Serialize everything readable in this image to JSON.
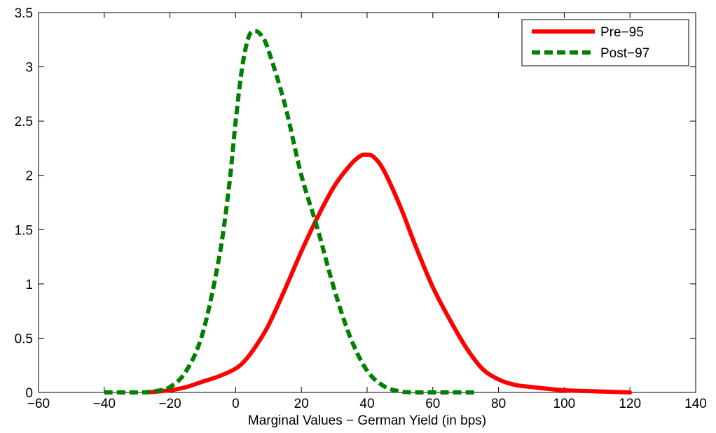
{
  "chart_data": {
    "type": "line",
    "title": "",
    "xlabel": "Marginal Values − German Yield (in bps)",
    "ylabel": "",
    "xlim": [
      -60,
      140
    ],
    "ylim": [
      0,
      3.5
    ],
    "x_ticks": [
      -60,
      -40,
      -20,
      0,
      20,
      40,
      60,
      80,
      100,
      120,
      140
    ],
    "x_tick_labels": [
      "−60",
      "−40",
      "−20",
      "0",
      "20",
      "40",
      "60",
      "80",
      "100",
      "120",
      "140"
    ],
    "y_ticks": [
      0,
      0.5,
      1,
      1.5,
      2,
      2.5,
      3,
      3.5
    ],
    "y_tick_labels": [
      "0",
      "0.5",
      "1",
      "1.5",
      "2",
      "2.5",
      "3",
      "3.5"
    ],
    "grid": false,
    "legend_position": "top-right",
    "series": [
      {
        "name": "Pre−95",
        "color": "#ff0000",
        "style": "solid",
        "x": [
          -27,
          -20,
          -15,
          -10,
          -5,
          0,
          3,
          6,
          10,
          15,
          20,
          25,
          30,
          35,
          38,
          40,
          42,
          45,
          50,
          55,
          60,
          65,
          70,
          75,
          80,
          85,
          90,
          100,
          110,
          120
        ],
        "y": [
          0.0,
          0.02,
          0.05,
          0.1,
          0.15,
          0.22,
          0.3,
          0.42,
          0.62,
          0.95,
          1.3,
          1.62,
          1.9,
          2.1,
          2.18,
          2.19,
          2.17,
          2.05,
          1.72,
          1.33,
          0.97,
          0.68,
          0.42,
          0.22,
          0.12,
          0.07,
          0.05,
          0.02,
          0.01,
          0.0
        ]
      },
      {
        "name": "Post−97",
        "color": "#008000",
        "style": "dashed",
        "x": [
          -40,
          -30,
          -25,
          -20,
          -15,
          -10,
          -5,
          -2,
          0,
          2,
          4,
          6,
          8,
          10,
          15,
          20,
          25,
          30,
          35,
          40,
          45,
          50,
          55,
          60,
          65,
          73
        ],
        "y": [
          0.0,
          0.0,
          0.01,
          0.05,
          0.2,
          0.55,
          1.25,
          1.9,
          2.5,
          3.0,
          3.28,
          3.33,
          3.28,
          3.15,
          2.65,
          2.0,
          1.5,
          0.95,
          0.5,
          0.2,
          0.06,
          0.01,
          0.0,
          0.0,
          0.0,
          0.0
        ]
      }
    ]
  }
}
